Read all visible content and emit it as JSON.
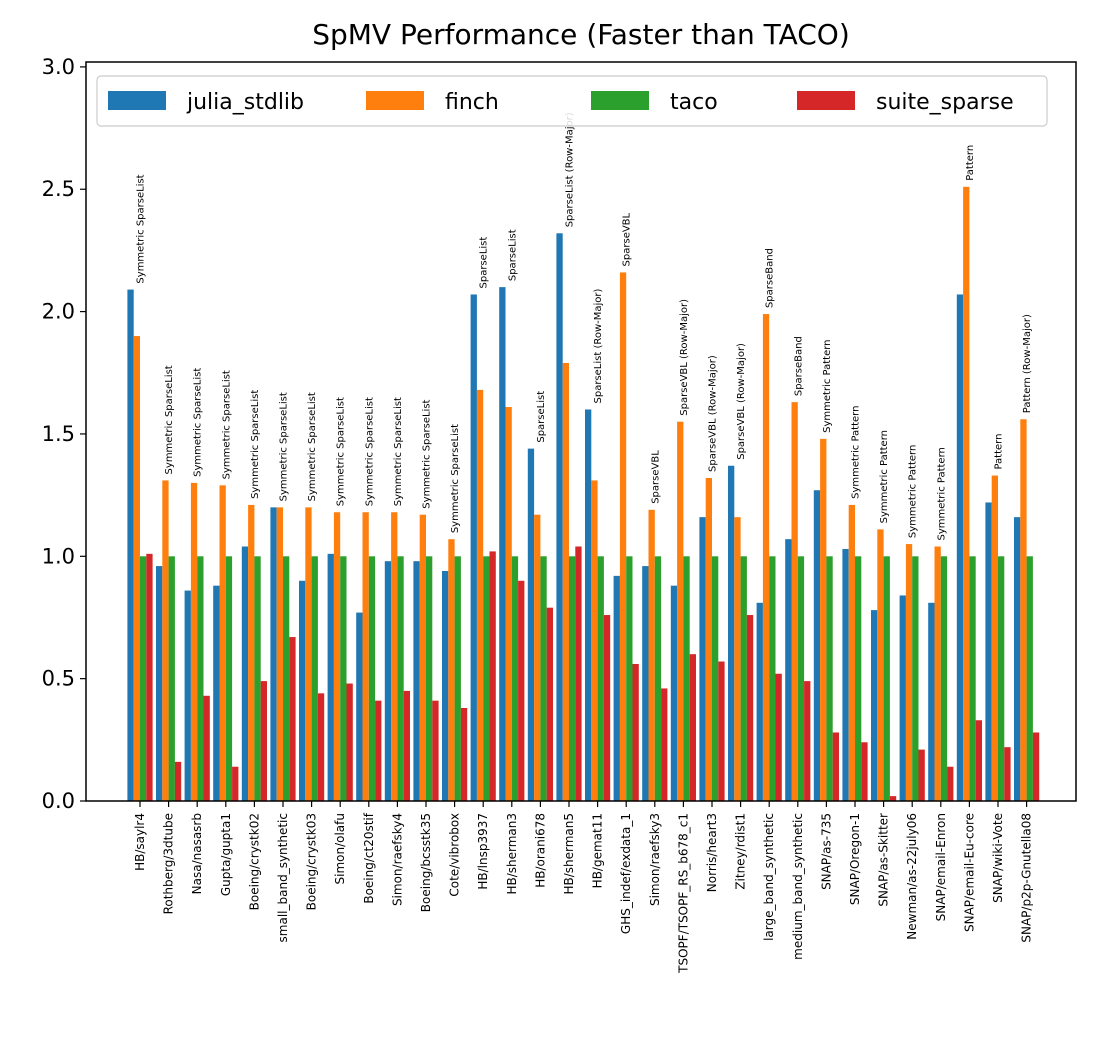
{
  "chart_data": {
    "type": "bar",
    "title": "SpMV Performance (Faster than TACO)",
    "xlabel": "",
    "ylabel": "",
    "ylim": [
      0,
      3.02
    ],
    "yticks": [
      "0.0",
      "0.5",
      "1.0",
      "1.5",
      "2.0",
      "2.5",
      "3.0"
    ],
    "grid": false,
    "legend_placement": "top-left",
    "categories": [
      "HB/saylr4",
      "Rothberg/3dtube",
      "Nasa/nasasrb",
      "Gupta/gupta1",
      "Boeing/crystk02",
      "small_band_synthetic",
      "Boeing/crystk03",
      "Simon/olafu",
      "Boeing/ct20stif",
      "Simon/raefsky4",
      "Boeing/bcsstk35",
      "Cote/vibrobox",
      "HB/lnsp3937",
      "HB/sherman3",
      "HB/orani678",
      "HB/sherman5",
      "HB/gemat11",
      "GHS_indef/exdata_1",
      "Simon/raefsky3",
      "TSOPF/TSOPF_RS_b678_c1",
      "Norris/heart3",
      "Zitney/rdist1",
      "large_band_synthetic",
      "medium_band_synthetic",
      "SNAP/as-735",
      "SNAP/Oregon-1",
      "SNAP/as-Skitter",
      "Newman/as-22july06",
      "SNAP/email-Enron",
      "SNAP/email-Eu-core",
      "SNAP/wiki-Vote",
      "SNAP/p2p-Gnutella08"
    ],
    "series": [
      {
        "name": "julia_stdlib",
        "color": "#1f77b4",
        "values": [
          2.09,
          0.96,
          0.86,
          0.88,
          1.04,
          1.2,
          0.9,
          1.01,
          0.77,
          0.98,
          0.98,
          0.94,
          2.07,
          2.1,
          1.44,
          2.32,
          1.6,
          0.92,
          0.96,
          0.88,
          1.16,
          1.37,
          0.81,
          1.07,
          1.27,
          1.03,
          0.78,
          0.84,
          0.81,
          2.07,
          1.22,
          1.16
        ]
      },
      {
        "name": "finch",
        "color": "#ff7f0e",
        "values": [
          1.9,
          1.31,
          1.3,
          1.29,
          1.21,
          1.2,
          1.2,
          1.18,
          1.18,
          1.18,
          1.17,
          1.07,
          1.68,
          1.61,
          1.17,
          1.79,
          1.31,
          2.16,
          1.19,
          1.55,
          1.32,
          1.16,
          1.99,
          1.63,
          1.48,
          1.21,
          1.11,
          1.05,
          1.04,
          2.51,
          1.33,
          1.56
        ]
      },
      {
        "name": "taco",
        "color": "#2ca02c",
        "values": [
          1.0,
          1.0,
          1.0,
          1.0,
          1.0,
          1.0,
          1.0,
          1.0,
          1.0,
          1.0,
          1.0,
          1.0,
          1.0,
          1.0,
          1.0,
          1.0,
          1.0,
          1.0,
          1.0,
          1.0,
          1.0,
          1.0,
          1.0,
          1.0,
          1.0,
          1.0,
          1.0,
          1.0,
          1.0,
          1.0,
          1.0,
          1.0
        ]
      },
      {
        "name": "suite_sparse",
        "color": "#d62728",
        "values": [
          1.01,
          0.16,
          0.43,
          0.14,
          0.49,
          0.67,
          0.44,
          0.48,
          0.41,
          0.45,
          0.41,
          0.38,
          1.02,
          0.9,
          0.79,
          1.04,
          0.76,
          0.56,
          0.46,
          0.6,
          0.57,
          0.76,
          0.52,
          0.49,
          0.28,
          0.24,
          0.02,
          0.21,
          0.14,
          0.33,
          0.22,
          0.28
        ]
      }
    ],
    "annotations": [
      "Symmetric SparseList",
      "Symmetric SparseList",
      "Symmetric SparseList",
      "Symmetric SparseList",
      "Symmetric SparseList",
      "Symmetric SparseList",
      "Symmetric SparseList",
      "Symmetric SparseList",
      "Symmetric SparseList",
      "Symmetric SparseList",
      "Symmetric SparseList",
      "Symmetric SparseList",
      "SparseList",
      "SparseList",
      "SparseList",
      "SparseList (Row-Major)",
      "SparseList (Row-Major)",
      "SparseVBL",
      "SparseVBL",
      "SparseVBL (Row-Major)",
      "SparseVBL (Row-Major)",
      "SparseVBL (Row-Major)",
      "SparseBand",
      "SparseBand",
      "Symmetric Pattern",
      "Symmetric Pattern",
      "Symmetric Pattern",
      "Symmetric Pattern",
      "Symmetric Pattern",
      "Pattern",
      "Pattern",
      "Pattern (Row-Major)"
    ]
  }
}
